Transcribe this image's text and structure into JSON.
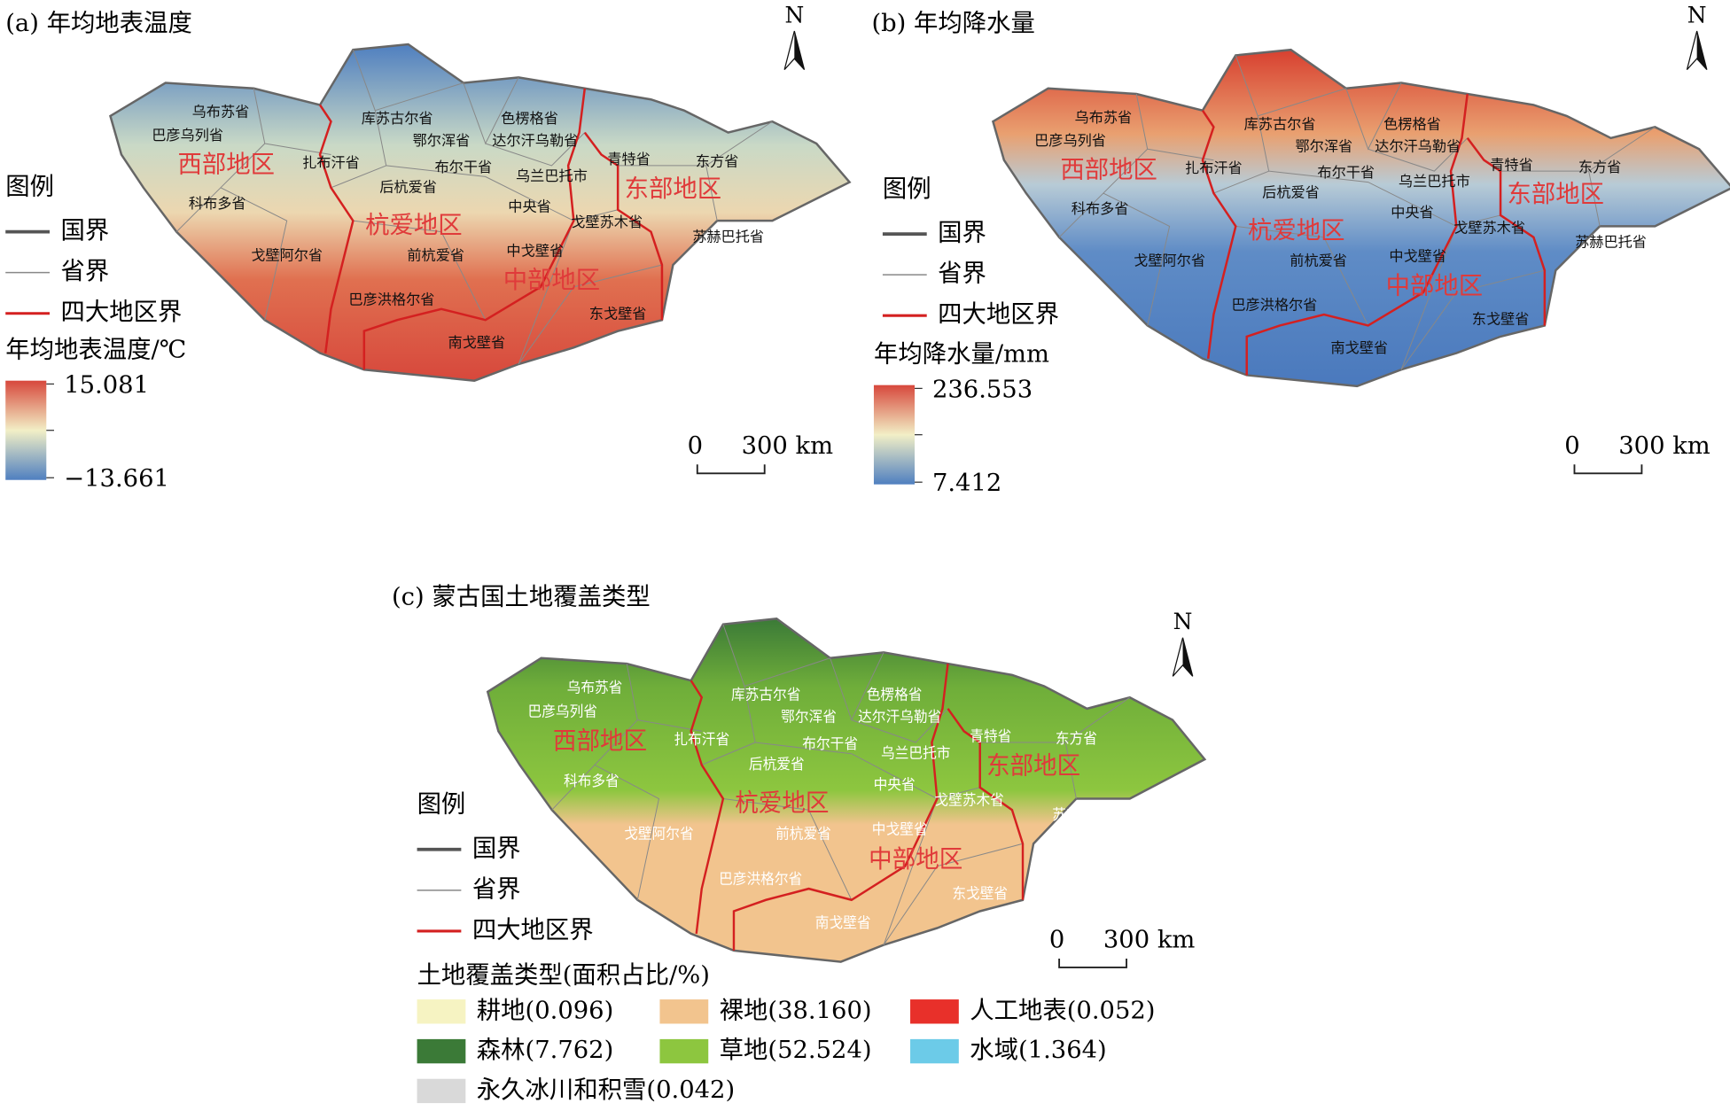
{
  "maps": [
    {
      "title": "(a) 年均地表温度",
      "provinces": [
        "乌布苏省",
        "巴彦乌列省",
        "扎布汗省",
        "科布多省",
        "戈壁阿尔省",
        "库苏古尔省",
        "鄂尔浑省",
        "色楞格省",
        "达尔汗乌勒省",
        "布尔干省",
        "后杭爱省",
        "乌兰巴托市",
        "中央省",
        "青特省",
        "东方省",
        "戈壁苏木省",
        "苏赫巴托省",
        "前杭爱省",
        "中戈壁省",
        "巴彦洪格尔省",
        "东戈壁省",
        "南戈壁省"
      ],
      "regions": [
        "西部地区",
        "杭爱地区",
        "中部地区",
        "东部地区"
      ],
      "legend": {
        "title": "图例",
        "items": [
          "国界",
          "省界",
          "四大地区界"
        ]
      },
      "colorbar": {
        "title": "年均地表温度/℃",
        "max": 15.081,
        "min": {
          "value": -13.661,
          "label": "−13.661"
        }
      },
      "scale": [
        "0",
        "300 km"
      ],
      "north": "N"
    },
    {
      "title": "(b) 年均降水量",
      "provinces": [
        "乌布苏省",
        "巴彦乌列省",
        "扎布汗省",
        "科布多省",
        "戈壁阿尔省",
        "库苏古尔省",
        "鄂尔浑省",
        "色楞格省",
        "达尔汗乌勒省",
        "布尔干省",
        "后杭爱省",
        "乌兰巴托市",
        "中央省",
        "青特省",
        "东方省",
        "戈壁苏木省",
        "苏赫巴托省",
        "前杭爱省",
        "中戈壁省",
        "巴彦洪格尔省",
        "东戈壁省",
        "南戈壁省"
      ],
      "regions": [
        "西部地区",
        "杭爱地区",
        "中部地区",
        "东部地区"
      ],
      "legend": {
        "title": "图例",
        "items": [
          "国界",
          "省界",
          "四大地区界"
        ]
      },
      "colorbar": {
        "title": "年均降水量/mm",
        "max": 236.553,
        "min": 7.412
      },
      "scale": [
        "0",
        "300 km"
      ],
      "north": "N"
    },
    {
      "title": "(c) 蒙古国土地覆盖类型",
      "provinces": [
        "乌布苏省",
        "巴彦乌列省",
        "扎布汗省",
        "科布多省",
        "戈壁阿尔省",
        "库苏古尔省",
        "鄂尔浑省",
        "色楞格省",
        "达尔汗乌勒省",
        "布尔干省",
        "后杭爱省",
        "乌兰巴托市",
        "中央省",
        "青特省",
        "东方省",
        "戈壁苏木省",
        "苏赫巴托省",
        "前杭爱省",
        "中戈壁省",
        "巴彦洪格尔省",
        "东戈壁省",
        "南戈壁省"
      ],
      "regions": [
        "西部地区",
        "杭爱地区",
        "中部地区",
        "东部地区"
      ],
      "legend": {
        "title": "图例",
        "items": [
          "国界",
          "省界",
          "四大地区界"
        ]
      },
      "landcover": {
        "title": "土地覆盖类型(面积占比/%)",
        "classes": [
          {
            "label": "耕地(0.096)",
            "color": "#f6f3c2"
          },
          {
            "label": "裸地(38.160)",
            "color": "#f2c48e"
          },
          {
            "label": "人工地表(0.052)",
            "color": "#e8302a"
          },
          {
            "label": "森林(7.762)",
            "color": "#3b7a37"
          },
          {
            "label": "草地(52.524)",
            "color": "#8dc63f"
          },
          {
            "label": "水域(1.364)",
            "color": "#6ccbe8"
          },
          {
            "label": "永久冰川和积雪(0.042)",
            "color": "#d9d9d9"
          }
        ]
      },
      "scale": [
        "0",
        "300 km"
      ],
      "north": "N"
    }
  ]
}
